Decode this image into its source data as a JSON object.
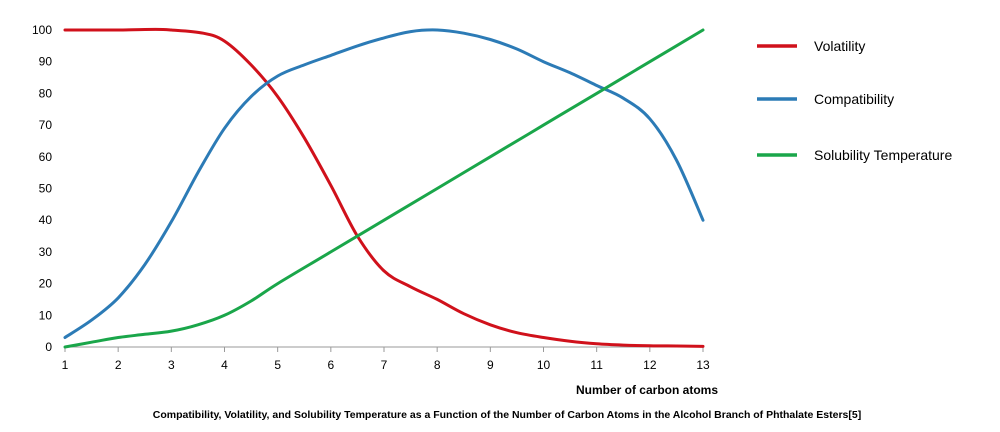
{
  "chart_data": {
    "type": "line",
    "title": "",
    "xlabel": "Number of carbon atoms",
    "ylabel": "",
    "caption": "Compatibility, Volatility, and Solubility Temperature as a Function of the Number of Carbon Atoms in the Alcohol Branch of Phthalate Esters[5]",
    "x": [
      1,
      2,
      3,
      4,
      5,
      6,
      7,
      8,
      9,
      10,
      11,
      12,
      13
    ],
    "xlim": [
      1,
      13
    ],
    "ylim": [
      0,
      100
    ],
    "yticks": [
      0,
      10,
      20,
      30,
      40,
      50,
      60,
      70,
      80,
      90,
      100
    ],
    "grid": false,
    "legend_position": "right",
    "series": [
      {
        "name": "Volatility",
        "color": "#d0111b",
        "points": [
          [
            1,
            100
          ],
          [
            2,
            100
          ],
          [
            2.7,
            100.2
          ],
          [
            3,
            100
          ],
          [
            3.6,
            99
          ],
          [
            4,
            96.5
          ],
          [
            4.5,
            89
          ],
          [
            5,
            79
          ],
          [
            5.5,
            66
          ],
          [
            6,
            51
          ],
          [
            6.5,
            35
          ],
          [
            7,
            24
          ],
          [
            7.5,
            19
          ],
          [
            8,
            15
          ],
          [
            8.5,
            10.5
          ],
          [
            9,
            7
          ],
          [
            9.5,
            4.5
          ],
          [
            10,
            3
          ],
          [
            10.5,
            1.8
          ],
          [
            11,
            1
          ],
          [
            11.5,
            0.6
          ],
          [
            12,
            0.4
          ],
          [
            12.5,
            0.3
          ],
          [
            13,
            0.2
          ]
        ]
      },
      {
        "name": "Compatibility",
        "color": "#2c7bb6",
        "points": [
          [
            1,
            3
          ],
          [
            1.5,
            8.5
          ],
          [
            2,
            15.5
          ],
          [
            2.5,
            26
          ],
          [
            3,
            39.5
          ],
          [
            3.5,
            55
          ],
          [
            4,
            69
          ],
          [
            4.5,
            79
          ],
          [
            5,
            85.5
          ],
          [
            5.5,
            89
          ],
          [
            6,
            92
          ],
          [
            6.5,
            95
          ],
          [
            7,
            97.5
          ],
          [
            7.5,
            99.5
          ],
          [
            8,
            100
          ],
          [
            8.5,
            99
          ],
          [
            9,
            97
          ],
          [
            9.5,
            94
          ],
          [
            10,
            90
          ],
          [
            10.5,
            86.5
          ],
          [
            11,
            82.5
          ],
          [
            11.5,
            78.5
          ],
          [
            12,
            72
          ],
          [
            12.5,
            59
          ],
          [
            13,
            40
          ]
        ]
      },
      {
        "name": "Solubility Temperature",
        "color": "#1aa64a",
        "points": [
          [
            1,
            0
          ],
          [
            1.5,
            1.5
          ],
          [
            2,
            3
          ],
          [
            2.5,
            4
          ],
          [
            3,
            5
          ],
          [
            3.5,
            7
          ],
          [
            4,
            10
          ],
          [
            4.5,
            14.5
          ],
          [
            5,
            20
          ],
          [
            6,
            30
          ],
          [
            7,
            40
          ],
          [
            8,
            50
          ],
          [
            9,
            60
          ],
          [
            10,
            70
          ],
          [
            11,
            80
          ],
          [
            12,
            90
          ],
          [
            13,
            100
          ]
        ]
      }
    ]
  }
}
